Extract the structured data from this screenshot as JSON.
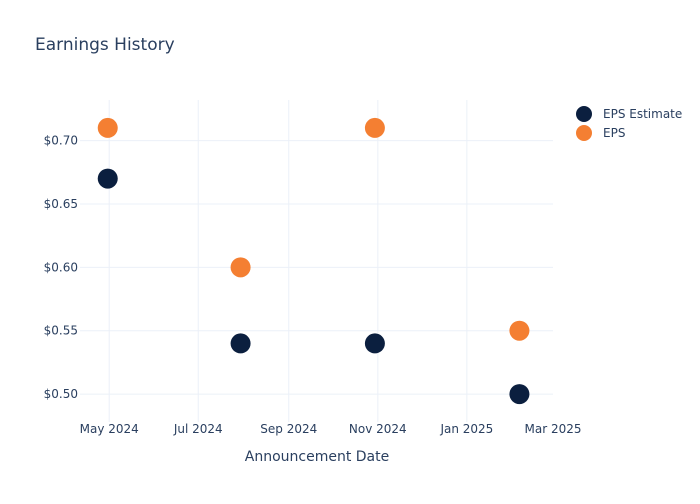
{
  "chart_data": {
    "type": "scatter",
    "title": "Earnings History",
    "xlabel": "Announcement Date",
    "ylabel": "",
    "x_ticks": [
      "May 2024",
      "Jul 2024",
      "Sep 2024",
      "Nov 2024",
      "Jan 2025",
      "Mar 2025"
    ],
    "x_tick_dates": [
      "2024-05-01",
      "2024-07-01",
      "2024-09-01",
      "2024-11-01",
      "2025-01-01",
      "2025-03-01"
    ],
    "xlim": [
      "2024-04-11",
      "2025-03-01"
    ],
    "y_ticks": [
      "$0.50",
      "$0.55",
      "$0.60",
      "$0.65",
      "$0.70"
    ],
    "y_tick_values": [
      0.5,
      0.55,
      0.6,
      0.65,
      0.7
    ],
    "ylim": [
      0.478,
      0.732
    ],
    "grid": true,
    "legend_position": "top-right",
    "series": [
      {
        "name": "EPS Estimate",
        "color": "#0b1f3f",
        "points": [
          {
            "x": "2024-04-30",
            "y": 0.67
          },
          {
            "x": "2024-07-30",
            "y": 0.54
          },
          {
            "x": "2024-10-30",
            "y": 0.54
          },
          {
            "x": "2025-02-06",
            "y": 0.5
          }
        ]
      },
      {
        "name": "EPS",
        "color": "#f47f32",
        "points": [
          {
            "x": "2024-04-30",
            "y": 0.71
          },
          {
            "x": "2024-07-30",
            "y": 0.6
          },
          {
            "x": "2024-10-30",
            "y": 0.71
          },
          {
            "x": "2025-02-06",
            "y": 0.55
          }
        ]
      }
    ]
  }
}
